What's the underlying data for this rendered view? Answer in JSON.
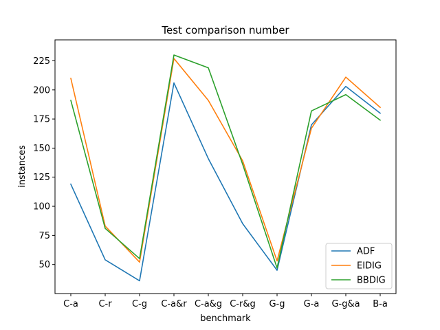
{
  "chart_data": {
    "type": "line",
    "title": "Test comparison number",
    "xlabel": "benchmark",
    "ylabel": "instances",
    "categories": [
      "C-a",
      "C-r",
      "C-g",
      "C-a&r",
      "C-a&g",
      "C-r&g",
      "G-g",
      "G-a",
      "G-g&a",
      "B-a"
    ],
    "ylim": [
      25,
      243
    ],
    "yticks": [
      50,
      75,
      100,
      125,
      150,
      175,
      200,
      225
    ],
    "grid": false,
    "legend_position": "lower right",
    "series": [
      {
        "name": "ADF",
        "color": "#1f77b4",
        "values": [
          119,
          54,
          36,
          206,
          141,
          85,
          45,
          170,
          203,
          180
        ]
      },
      {
        "name": "EIDIG",
        "color": "#ff7f0e",
        "values": [
          210,
          83,
          52,
          227,
          191,
          139,
          53,
          167,
          211,
          185
        ]
      },
      {
        "name": "BBDIG",
        "color": "#2ca02c",
        "values": [
          191,
          81,
          55,
          230,
          219,
          136,
          47,
          182,
          196,
          174
        ]
      }
    ]
  }
}
